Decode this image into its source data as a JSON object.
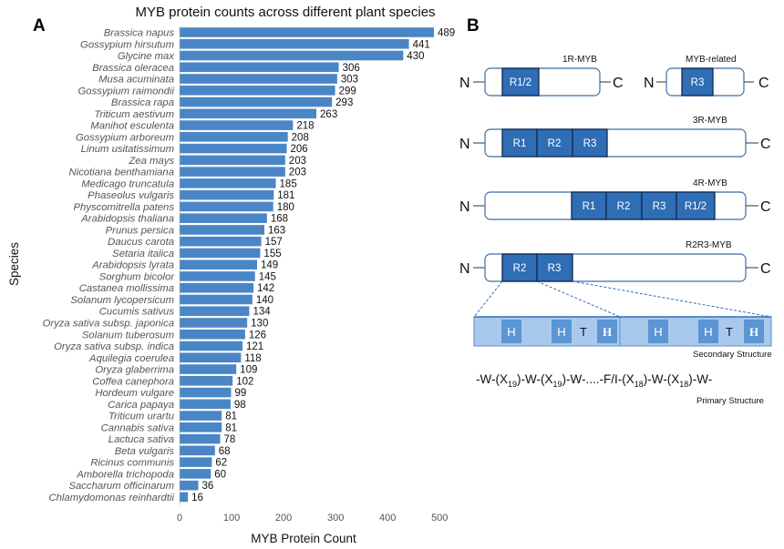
{
  "panel_a_label": "A",
  "panel_b_label": "B",
  "chart_data": {
    "type": "bar",
    "orientation": "horizontal",
    "title": "MYB protein counts across different plant species",
    "xlabel": "MYB Protein Count",
    "ylabel": "Species",
    "xlim": [
      0,
      520
    ],
    "xticks": [
      0,
      100,
      200,
      300,
      400,
      500
    ],
    "grid": false,
    "bar_color": "#4a86c5",
    "categories": [
      "Brassica napus",
      "Gossypium hirsutum",
      "Glycine max",
      "Brassica oleracea",
      "Musa acuminata",
      "Gossypium raimondii",
      "Brassica rapa",
      "Triticum aestivum",
      "Manihot esculenta",
      "Gossypium arboreum",
      "Linum usitatissimum",
      "Zea mays",
      "Nicotiana benthamiana",
      "Medicago truncatula",
      "Phaseolus vulgaris",
      "Physcomitrella patens",
      "Arabidopsis thaliana",
      "Prunus persica",
      "Daucus carota",
      "Setaria italica",
      "Arabidopsis lyrata",
      "Sorghum bicolor",
      "Castanea mollissima",
      "Solanum lycopersicum",
      "Cucumis sativus",
      "Oryza sativa subsp. japonica",
      "Solanum tuberosum",
      "Oryza sativa subsp. indica",
      "Aquilegia coerulea",
      "Oryza glaberrima",
      "Coffea canephora",
      "Hordeum vulgare",
      "Carica papaya",
      "Triticum urartu",
      "Cannabis sativa",
      "Lactuca sativa",
      "Beta vulgaris",
      "Ricinus communis",
      "Amborella trichopoda",
      "Saccharum officinarum",
      "Chlamydomonas reinhardtii"
    ],
    "values": [
      489,
      441,
      430,
      306,
      303,
      299,
      293,
      263,
      218,
      208,
      206,
      203,
      203,
      185,
      181,
      180,
      168,
      163,
      157,
      155,
      149,
      145,
      142,
      140,
      134,
      130,
      126,
      121,
      118,
      109,
      102,
      99,
      98,
      81,
      81,
      78,
      68,
      62,
      60,
      36,
      16
    ]
  },
  "diagram": {
    "accent_color": "#2f6db5",
    "light_color": "#a9c9ec",
    "n_label": "N",
    "c_label": "C",
    "types": {
      "one_r": {
        "name": "1R-MYB",
        "repeats": [
          "R1/2"
        ]
      },
      "related": {
        "name": "MYB-related",
        "repeats": [
          "R3"
        ]
      },
      "three_r": {
        "name": "3R-MYB",
        "repeats": [
          "R1",
          "R2",
          "R3"
        ]
      },
      "four_r": {
        "name": "4R-MYB",
        "repeats": [
          "R1",
          "R2",
          "R3",
          "R1/2"
        ]
      },
      "r2r3": {
        "name": "R2R3-MYB",
        "repeats": [
          "R2",
          "R3"
        ]
      }
    },
    "secondary": {
      "helix": "H",
      "turn": "T",
      "label": "Secondary Structure"
    },
    "primary": {
      "p1": "-W-(X",
      "s1": "19",
      "p2": ")-W-(X",
      "s2": "19",
      "p3": ")-W-....-F/I-(X",
      "s3": "18",
      "p4": ")-W-(X",
      "s4": "18",
      "p5": ")-W-",
      "label": "Primary Structure"
    }
  }
}
